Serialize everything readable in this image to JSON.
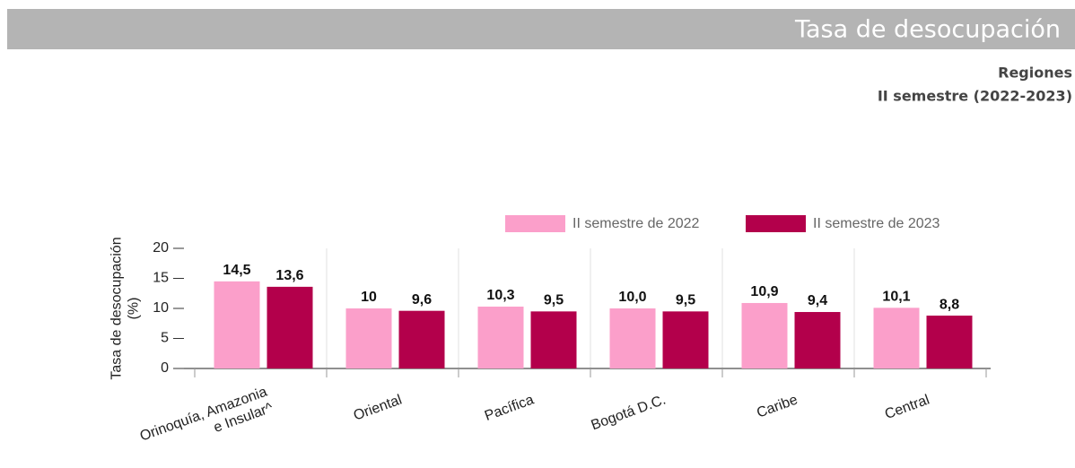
{
  "header": {
    "title": "Tasa de desocupación",
    "subtitle": "Regiones",
    "period": "II semestre (2022-2023)"
  },
  "chart_data": {
    "type": "bar",
    "ylabel": "Tasa de desocupación (%)",
    "categories": [
      "Orinoquía, Amazonia e Insular^",
      "Oriental",
      "Pacífica",
      "Bogotá D.C.",
      "Caribe",
      "Central"
    ],
    "series": [
      {
        "name": "II semestre de 2022",
        "color": "#fb9fca",
        "values": [
          14.5,
          10,
          10.3,
          10.0,
          10.9,
          10.1
        ],
        "value_labels": [
          "14,5",
          "10",
          "10,3",
          "10,0",
          "10,9",
          "10,1"
        ]
      },
      {
        "name": "II semestre de 2023",
        "color": "#b3004b",
        "values": [
          13.6,
          9.6,
          9.5,
          9.5,
          9.4,
          8.8
        ],
        "value_labels": [
          "13,6",
          "9,6",
          "9,5",
          "9,5",
          "9,4",
          "8,8"
        ]
      }
    ],
    "ylim": [
      0,
      20
    ],
    "yticks": [
      0,
      5,
      10,
      15,
      20
    ],
    "legend": "top"
  }
}
